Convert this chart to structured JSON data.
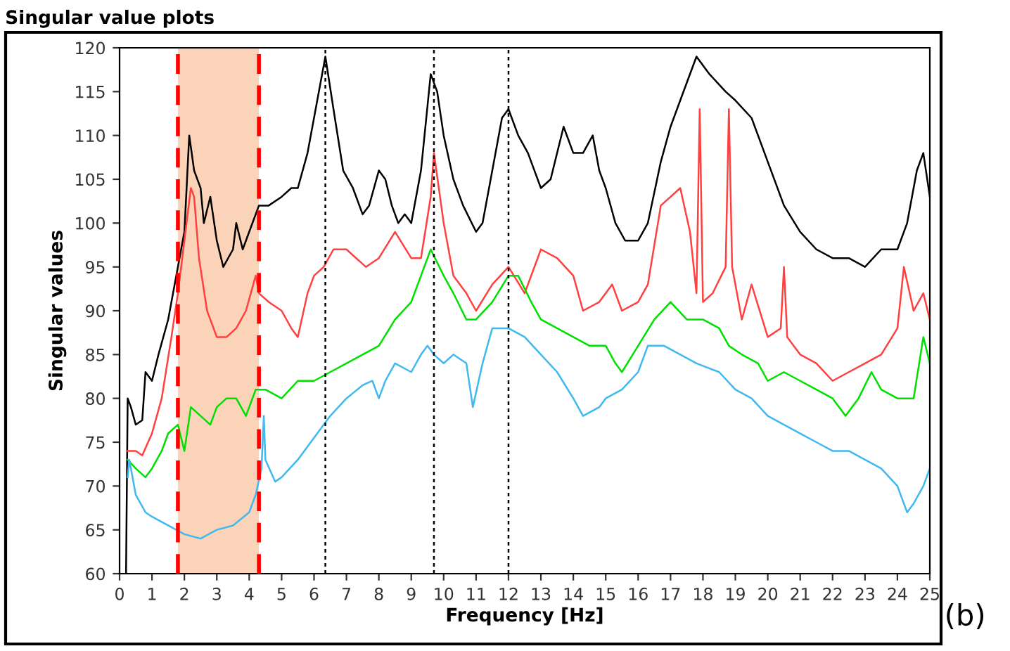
{
  "chart_data": {
    "type": "line",
    "title": "Singular value plots",
    "xlabel": "Frequency [Hz]",
    "ylabel": "Singular values",
    "annotations": [
      "(b)"
    ],
    "xlim": [
      0,
      25
    ],
    "ylim": [
      60,
      120
    ],
    "xticks": [
      0,
      1,
      2,
      3,
      4,
      5,
      6,
      7,
      8,
      9,
      10,
      11,
      12,
      13,
      14,
      15,
      16,
      17,
      18,
      19,
      20,
      21,
      22,
      23,
      24,
      25
    ],
    "yticks": [
      60,
      65,
      70,
      75,
      80,
      85,
      90,
      95,
      100,
      105,
      110,
      115,
      120
    ],
    "grid": false,
    "legend": false,
    "marker": "none",
    "line_style": "solid",
    "ref_lines": [
      {
        "axis": "x",
        "value": 1.8,
        "label": null,
        "color": "#ff0000",
        "line_style": "dashed"
      },
      {
        "axis": "x",
        "value": 4.3,
        "label": null,
        "color": "#ff0000",
        "line_style": "dashed"
      },
      {
        "axis": "x",
        "value": 6.35,
        "label": null,
        "color": "#000000",
        "line_style": "dotted"
      },
      {
        "axis": "x",
        "value": 9.7,
        "label": null,
        "color": "#000000",
        "line_style": "dotted"
      },
      {
        "axis": "x",
        "value": 12.0,
        "label": null,
        "color": "#000000",
        "line_style": "dotted"
      }
    ],
    "bands": [
      {
        "axis": "x",
        "from": 1.8,
        "to": 4.3,
        "label": null,
        "color": "#fbd3b8"
      }
    ],
    "series": [
      {
        "color": "#000000",
        "x": [
          0.2,
          0.25,
          0.35,
          0.5,
          0.7,
          0.8,
          1.0,
          1.2,
          1.5,
          1.7,
          2.0,
          2.15,
          2.3,
          2.5,
          2.6,
          2.8,
          3.0,
          3.2,
          3.5,
          3.6,
          3.8,
          4.0,
          4.3,
          4.6,
          5.0,
          5.3,
          5.5,
          5.8,
          6.1,
          6.35,
          6.6,
          6.9,
          7.2,
          7.5,
          7.7,
          8.0,
          8.2,
          8.4,
          8.6,
          8.8,
          9.0,
          9.3,
          9.6,
          9.8,
          10.0,
          10.3,
          10.6,
          11.0,
          11.2,
          11.5,
          11.8,
          12.0,
          12.3,
          12.6,
          13.0,
          13.3,
          13.7,
          14.0,
          14.3,
          14.6,
          14.8,
          15.0,
          15.3,
          15.6,
          16.0,
          16.3,
          16.7,
          17.0,
          17.3,
          17.8,
          18.2,
          18.7,
          19.0,
          19.5,
          20.0,
          20.5,
          21.0,
          21.5,
          22.0,
          22.5,
          23.0,
          23.5,
          24.0,
          24.3,
          24.6,
          24.8,
          25.0
        ],
        "values": [
          60,
          80,
          79,
          77,
          77.5,
          83,
          82,
          85,
          89,
          93,
          99,
          110,
          106,
          104,
          100,
          103,
          98,
          95,
          97,
          100,
          97,
          99,
          102,
          102,
          103,
          104,
          104,
          108,
          114,
          119,
          113,
          106,
          104,
          101,
          102,
          106,
          105,
          102,
          100,
          101,
          100,
          106,
          117,
          115,
          110,
          105,
          102,
          99,
          100,
          106,
          112,
          113,
          110,
          108,
          104,
          105,
          111,
          108,
          108,
          110,
          106,
          104,
          100,
          98,
          98,
          100,
          107,
          111,
          114,
          119,
          117,
          115,
          114,
          112,
          107,
          102,
          99,
          97,
          96,
          96,
          95,
          97,
          97,
          100,
          106,
          108,
          103
        ]
      },
      {
        "color": "#ff4040",
        "x": [
          0.25,
          0.5,
          0.7,
          1.0,
          1.3,
          1.6,
          1.8,
          2.0,
          2.2,
          2.3,
          2.45,
          2.7,
          3.0,
          3.3,
          3.6,
          3.9,
          4.2,
          4.3,
          4.6,
          5.0,
          5.3,
          5.5,
          5.8,
          6.0,
          6.3,
          6.6,
          7.0,
          7.3,
          7.6,
          8.0,
          8.5,
          9.0,
          9.3,
          9.6,
          9.7,
          10.0,
          10.3,
          10.7,
          11.0,
          11.5,
          12.0,
          12.5,
          13.0,
          13.5,
          14.0,
          14.3,
          14.8,
          15.2,
          15.5,
          16.0,
          16.3,
          16.7,
          17.3,
          17.6,
          17.8,
          17.9,
          18.0,
          18.3,
          18.7,
          18.8,
          18.9,
          19.2,
          19.5,
          20.0,
          20.4,
          20.5,
          20.6,
          21.0,
          21.5,
          22.0,
          22.5,
          23.0,
          23.5,
          24.0,
          24.2,
          24.5,
          24.8,
          25.0
        ],
        "values": [
          74,
          74,
          73.5,
          76,
          80,
          87,
          92,
          98,
          104,
          103,
          96,
          90,
          87,
          87,
          88,
          90,
          94,
          92,
          91,
          90,
          88,
          87,
          92,
          94,
          95,
          97,
          97,
          96,
          95,
          96,
          99,
          96,
          96,
          103,
          108,
          100,
          94,
          92,
          90,
          93,
          95,
          92,
          97,
          96,
          94,
          90,
          91,
          93,
          90,
          91,
          93,
          102,
          104,
          99,
          92,
          113,
          91,
          92,
          95,
          113,
          95,
          89,
          93,
          87,
          88,
          95,
          87,
          85,
          84,
          82,
          83,
          84,
          85,
          88,
          95,
          90,
          92,
          89
        ]
      },
      {
        "color": "#00e000",
        "x": [
          0.25,
          0.5,
          0.8,
          1.0,
          1.3,
          1.5,
          1.8,
          2.0,
          2.2,
          2.5,
          2.8,
          3.0,
          3.3,
          3.6,
          3.9,
          4.2,
          4.5,
          5.0,
          5.5,
          6.0,
          6.5,
          7.0,
          7.5,
          8.0,
          8.5,
          9.0,
          9.3,
          9.6,
          10.0,
          10.3,
          10.7,
          11.0,
          11.5,
          12.0,
          12.3,
          12.7,
          13.0,
          13.5,
          14.0,
          14.5,
          15.0,
          15.3,
          15.5,
          16.0,
          16.5,
          17.0,
          17.5,
          18.0,
          18.5,
          18.8,
          19.2,
          19.7,
          20.0,
          20.5,
          21.0,
          21.5,
          22.0,
          22.4,
          22.8,
          23.2,
          23.5,
          24.0,
          24.5,
          24.8,
          25.0
        ],
        "values": [
          73,
          72,
          71,
          72,
          74,
          76,
          77,
          74,
          79,
          78,
          77,
          79,
          80,
          80,
          78,
          81,
          81,
          80,
          82,
          82,
          83,
          84,
          85,
          86,
          89,
          91,
          94,
          97,
          94,
          92,
          89,
          89,
          91,
          94,
          94,
          91,
          89,
          88,
          87,
          86,
          86,
          84,
          83,
          86,
          89,
          91,
          89,
          89,
          88,
          86,
          85,
          84,
          82,
          83,
          82,
          81,
          80,
          78,
          80,
          83,
          81,
          80,
          80,
          87,
          84
        ]
      },
      {
        "color": "#40b8f0",
        "x": [
          0.25,
          0.3,
          0.5,
          0.8,
          1.0,
          1.5,
          2.0,
          2.5,
          3.0,
          3.5,
          4.0,
          4.2,
          4.38,
          4.45,
          4.5,
          4.8,
          5.0,
          5.5,
          6.0,
          6.5,
          7.0,
          7.5,
          7.8,
          8.0,
          8.2,
          8.5,
          9.0,
          9.3,
          9.5,
          9.7,
          10.0,
          10.3,
          10.7,
          10.9,
          11.2,
          11.5,
          12.0,
          12.5,
          13.0,
          13.5,
          14.0,
          14.3,
          14.8,
          15.0,
          15.5,
          16.0,
          16.3,
          16.8,
          17.3,
          17.8,
          18.5,
          19.0,
          19.5,
          20.0,
          20.5,
          21.0,
          21.5,
          22.0,
          22.5,
          23.0,
          23.5,
          24.0,
          24.3,
          24.5,
          24.8,
          25.0
        ],
        "values": [
          71,
          73,
          69,
          67,
          66.5,
          65.5,
          64.5,
          64,
          65,
          65.5,
          67,
          69,
          72,
          78,
          73,
          70.5,
          71,
          73,
          75.5,
          78,
          80,
          81.5,
          82,
          80,
          82,
          84,
          83,
          85,
          86,
          85,
          84,
          85,
          84,
          79,
          84,
          88,
          88,
          87,
          85,
          83,
          80,
          78,
          79,
          80,
          81,
          83,
          86,
          86,
          85,
          84,
          83,
          81,
          80,
          78,
          77,
          76,
          75,
          74,
          74,
          73,
          72,
          70,
          67,
          68,
          70,
          72
        ]
      }
    ]
  }
}
